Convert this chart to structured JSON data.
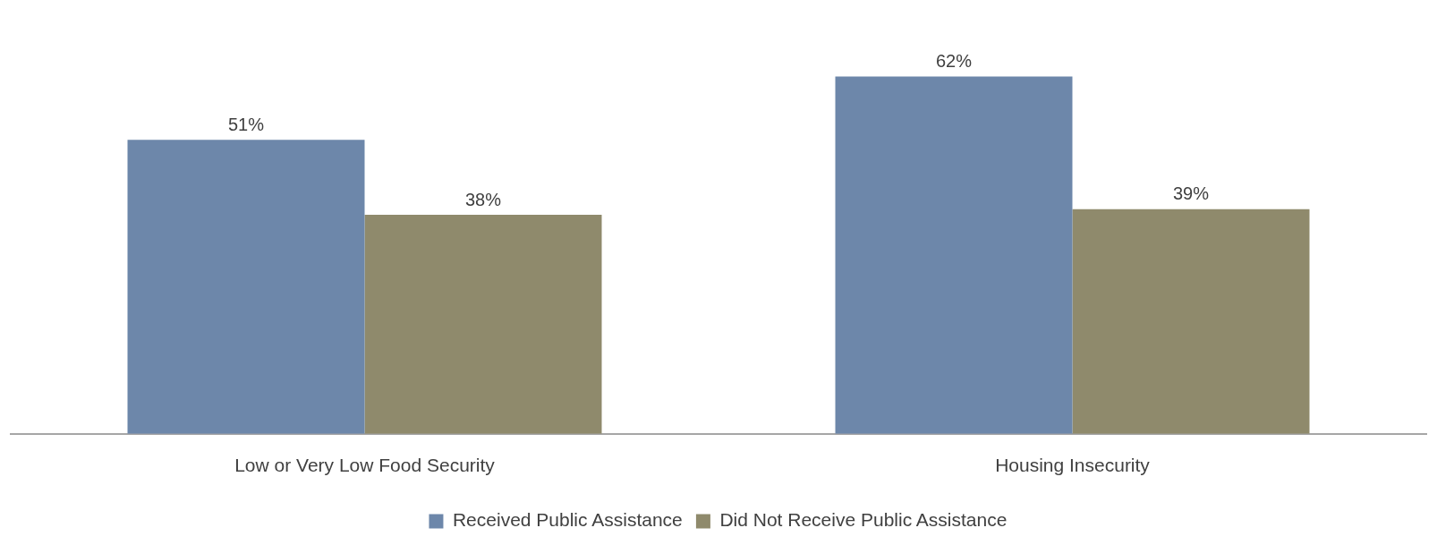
{
  "chart_data": {
    "type": "bar",
    "tick_labels": "x",
    "categories": [
      "Low or Very Low Food Security",
      "Housing Insecurity"
    ],
    "series": [
      {
        "name": "Received Public Assistance",
        "color": "#6d87aa",
        "values": [
          51,
          62
        ],
        "value_labels": [
          "51%",
          "62%"
        ]
      },
      {
        "name": "Did Not Receive Public Assistance",
        "color": "#8f8a6c",
        "values": [
          38,
          39
        ],
        "value_labels": [
          "38%",
          "39%"
        ]
      }
    ],
    "legend": "bottom",
    "grid": false
  }
}
